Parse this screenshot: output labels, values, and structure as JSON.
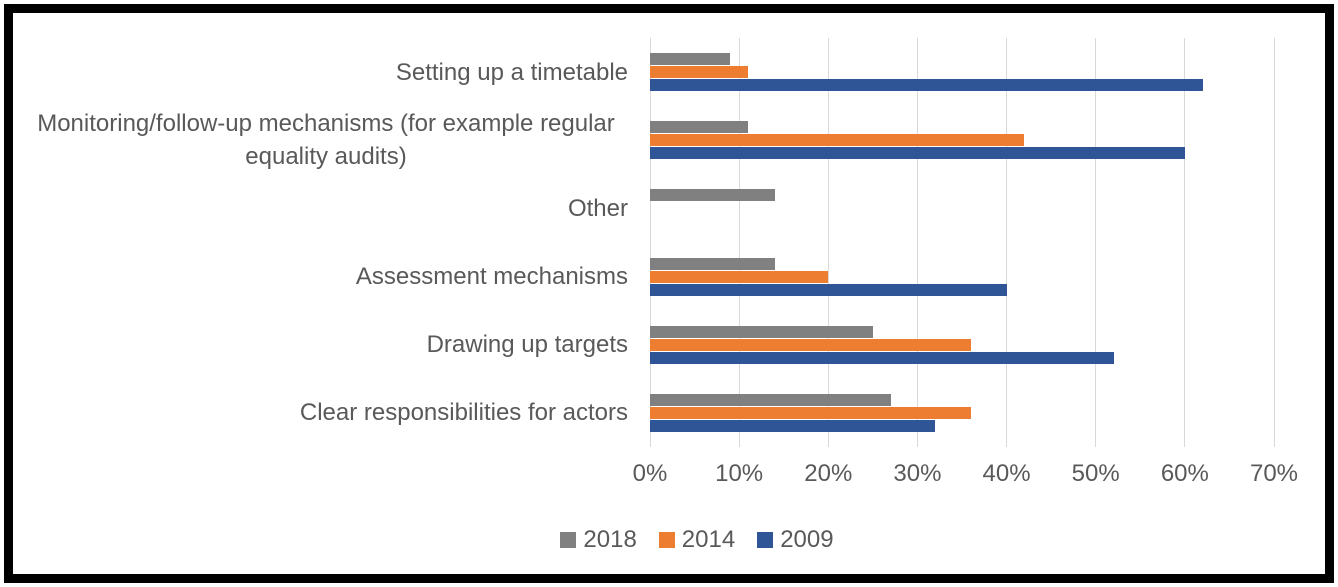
{
  "chart_data": {
    "type": "bar",
    "orientation": "horizontal",
    "title": "",
    "xlabel": "",
    "ylabel": "",
    "categories": [
      "Setting up a timetable",
      "Monitoring/follow-up mechanisms (for example regular equality audits)",
      "Other",
      "Assessment mechanisms",
      "Drawing up targets",
      "Clear responsibilities for actors"
    ],
    "category_lines": [
      [
        "Setting up a timetable"
      ],
      [
        "Monitoring/follow-up mechanisms (for example regular",
        "equality audits)"
      ],
      [
        "Other"
      ],
      [
        "Assessment mechanisms"
      ],
      [
        "Drawing up targets"
      ],
      [
        "Clear responsibilities for actors"
      ]
    ],
    "series": [
      {
        "name": "2018",
        "color": "#808080",
        "values": [
          9,
          11,
          14,
          14,
          25,
          27
        ]
      },
      {
        "name": "2014",
        "color": "#ED7D31",
        "values": [
          11,
          42,
          0,
          20,
          36,
          36
        ]
      },
      {
        "name": "2009",
        "color": "#2F5597",
        "values": [
          62,
          60,
          0,
          40,
          52,
          32
        ]
      }
    ],
    "x_ticks": [
      "0%",
      "10%",
      "20%",
      "30%",
      "40%",
      "50%",
      "60%",
      "70%"
    ],
    "xlim": [
      0,
      70
    ],
    "grid": true,
    "legend_position": "bottom",
    "legend": [
      "2018",
      "2014",
      "2009"
    ]
  },
  "colors": {
    "background": "#FFFFFF",
    "border": "#000000",
    "gridline": "#D9D9D9",
    "text": "#595959",
    "series_2018": "#808080",
    "series_2014": "#ED7D31",
    "series_2009": "#2F5597"
  }
}
